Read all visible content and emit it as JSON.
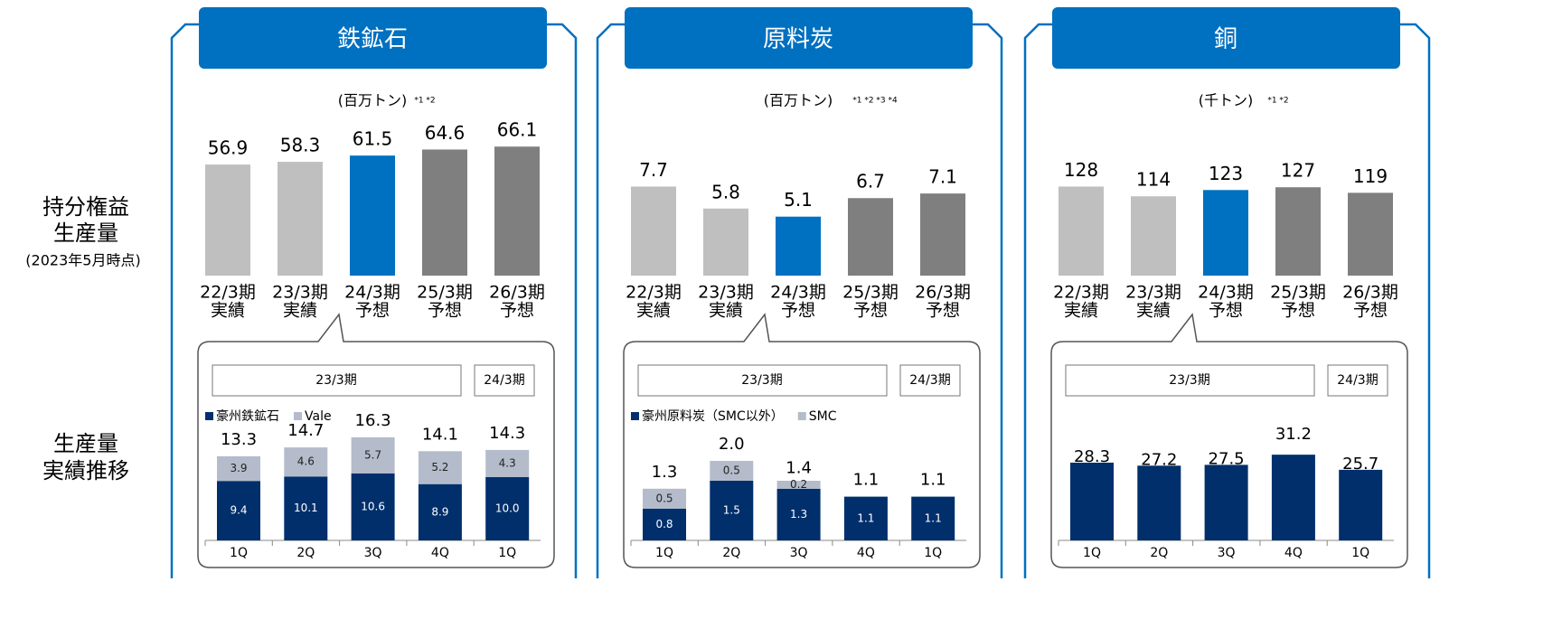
{
  "side_labels": {
    "annual": [
      "持分権益",
      "生産量",
      "(2023年5月時点)"
    ],
    "quarterly": [
      "生産量",
      "実績推移"
    ]
  },
  "panels": [
    {
      "title": "鉄鉱石",
      "unit": "(百万トン)",
      "note": "*1 *2",
      "annual": {
        "categories": [
          "22/3期",
          "23/3期",
          "24/3期",
          "25/3期",
          "26/3期"
        ],
        "category_notes": [
          "実績",
          "実績",
          "予想",
          "予想",
          "予想"
        ],
        "values": [
          56.9,
          58.3,
          61.5,
          64.6,
          66.1
        ],
        "colors": [
          "#bfbfbf",
          "#bfbfbf",
          "#0070c0",
          "#7f7f7f",
          "#7f7f7f"
        ]
      },
      "quarterly": {
        "periods": [
          "23/3期",
          "24/3期"
        ],
        "categories": [
          "1Q",
          "2Q",
          "3Q",
          "4Q",
          "1Q"
        ],
        "series": [
          {
            "name": "豪州鉄鉱石",
            "color": "#002f6c",
            "values": [
              9.4,
              10.1,
              10.6,
              8.9,
              10.0
            ],
            "value_labels": [
              "9.4",
              "10.1",
              "10.6",
              "8.9",
              "10.0"
            ]
          },
          {
            "name": "Vale",
            "color": "#b4bccb",
            "values": [
              3.9,
              4.6,
              5.7,
              5.2,
              4.3
            ]
          }
        ],
        "totals": [
          13.3,
          14.7,
          16.3,
          14.1,
          14.3
        ]
      }
    },
    {
      "title": "原料炭",
      "unit": "(百万トン)",
      "note": "*1 *2 *3 *4",
      "annual": {
        "categories": [
          "22/3期",
          "23/3期",
          "24/3期",
          "25/3期",
          "26/3期"
        ],
        "category_notes": [
          "実績",
          "実績",
          "予想",
          "予想",
          "予想"
        ],
        "values": [
          7.7,
          5.8,
          5.1,
          6.7,
          7.1
        ],
        "colors": [
          "#bfbfbf",
          "#bfbfbf",
          "#0070c0",
          "#7f7f7f",
          "#7f7f7f"
        ]
      },
      "quarterly": {
        "periods": [
          "23/3期",
          "24/3期"
        ],
        "categories": [
          "1Q",
          "2Q",
          "3Q",
          "4Q",
          "1Q"
        ],
        "series": [
          {
            "name": "豪州原料炭（SMC以外）",
            "color": "#002f6c",
            "values": [
              0.8,
              1.5,
              1.3,
              1.1,
              1.1
            ]
          },
          {
            "name": "SMC",
            "color": "#b4bccb",
            "values": [
              0.5,
              0.5,
              0.2,
              null,
              null
            ]
          }
        ],
        "totals": [
          1.3,
          2.0,
          1.4,
          1.1,
          1.1
        ],
        "total_labels": [
          "1.3",
          "2.0",
          "1.4",
          "1.1",
          "1.1"
        ]
      }
    },
    {
      "title": "銅",
      "unit": "(千トン)",
      "note": "*1 *2",
      "annual": {
        "categories": [
          "22/3期",
          "23/3期",
          "24/3期",
          "25/3期",
          "26/3期"
        ],
        "category_notes": [
          "実績",
          "実績",
          "予想",
          "予想",
          "予想"
        ],
        "values": [
          128,
          114,
          123,
          127,
          119
        ],
        "colors": [
          "#bfbfbf",
          "#bfbfbf",
          "#0070c0",
          "#7f7f7f",
          "#7f7f7f"
        ]
      },
      "quarterly": {
        "periods": [
          "23/3期",
          "24/3期"
        ],
        "categories": [
          "1Q",
          "2Q",
          "3Q",
          "4Q",
          "1Q"
        ],
        "color": "#002f6c",
        "values": [
          28.3,
          27.2,
          27.5,
          31.2,
          25.7
        ]
      }
    }
  ]
}
